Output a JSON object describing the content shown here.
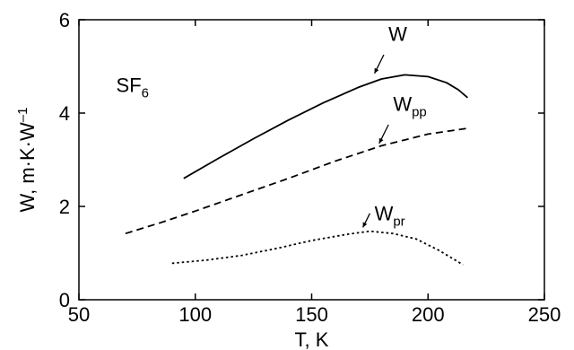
{
  "chart_data": {
    "type": "line",
    "title": "",
    "xlabel": "T, K",
    "ylabel": "W,  m·K·W",
    "ylabel_sup": "–1",
    "xlim": [
      50,
      250
    ],
    "ylim": [
      0,
      6
    ],
    "x_ticks": [
      50,
      100,
      150,
      200,
      250
    ],
    "y_ticks": [
      0,
      2,
      4,
      6
    ],
    "grid": false,
    "legend": "none",
    "annotation": {
      "main": "SF",
      "sub": "6"
    },
    "series": [
      {
        "name": "W",
        "label_sub": "",
        "style": "solid",
        "color": "#000000",
        "x": [
          95,
          110,
          125,
          140,
          155,
          170,
          180,
          190,
          200,
          208,
          213,
          217
        ],
        "y": [
          2.6,
          3.03,
          3.45,
          3.85,
          4.22,
          4.55,
          4.73,
          4.82,
          4.78,
          4.65,
          4.5,
          4.33
        ]
      },
      {
        "name": "W",
        "label_sub": "pp",
        "style": "dashed",
        "color": "#000000",
        "x": [
          70,
          85,
          100,
          120,
          140,
          160,
          180,
          200,
          218
        ],
        "y": [
          1.42,
          1.65,
          1.9,
          2.25,
          2.6,
          2.97,
          3.3,
          3.55,
          3.68
        ]
      },
      {
        "name": "W",
        "label_sub": "pr",
        "style": "dotted",
        "color": "#000000",
        "x": [
          90,
          105,
          120,
          135,
          150,
          165,
          175,
          185,
          195,
          205,
          215
        ],
        "y": [
          0.78,
          0.85,
          0.95,
          1.1,
          1.27,
          1.4,
          1.47,
          1.42,
          1.3,
          1.05,
          0.75
        ]
      }
    ]
  }
}
